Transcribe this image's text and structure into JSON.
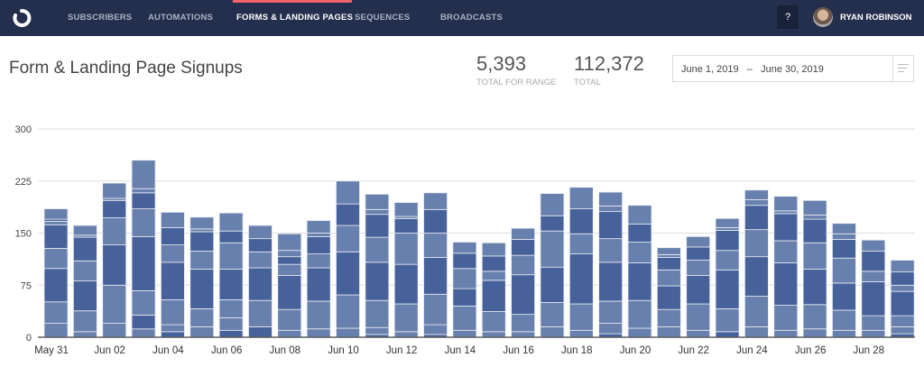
{
  "nav": {
    "items": [
      {
        "label": "SUBSCRIBERS"
      },
      {
        "label": "AUTOMATIONS"
      },
      {
        "label": "FORMS & LANDING PAGES",
        "active": true
      },
      {
        "label": "SEQUENCES"
      },
      {
        "label": "BROADCASTS"
      }
    ],
    "help_label": "?",
    "user_name": "RYAN ROBINSON",
    "accent_color": "#f2626b",
    "background_color": "#232f4d"
  },
  "header": {
    "title": "Form & Landing Page Signups",
    "stats": [
      {
        "value": "5,393",
        "label": "TOTAL FOR RANGE"
      },
      {
        "value": "112,372",
        "label": "TOTAL"
      }
    ],
    "date_range": {
      "start": "June 1, 2019",
      "separator": "–",
      "end": "June 30, 2019"
    }
  },
  "chart_data": {
    "type": "bar",
    "stacked": true,
    "colors": {
      "L": "#6880ad",
      "D": "#47629a"
    },
    "ylim": [
      0,
      300
    ],
    "yticks": [
      0,
      75,
      150,
      225,
      300
    ],
    "grid": true,
    "xtick_labels": [
      "May 31",
      "Jun 02",
      "Jun 04",
      "Jun 06",
      "Jun 08",
      "Jun 10",
      "Jun 12",
      "Jun 14",
      "Jun 16",
      "Jun 18",
      "Jun 20",
      "Jun 22",
      "Jun 24",
      "Jun 26",
      "Jun 28"
    ],
    "categories": [
      "May 31",
      "Jun 01",
      "Jun 02",
      "Jun 03",
      "Jun 04",
      "Jun 05",
      "Jun 06",
      "Jun 07",
      "Jun 08",
      "Jun 09",
      "Jun 10",
      "Jun 11",
      "Jun 12",
      "Jun 13",
      "Jun 14",
      "Jun 15",
      "Jun 16",
      "Jun 17",
      "Jun 18",
      "Jun 19",
      "Jun 20",
      "Jun 21",
      "Jun 22",
      "Jun 23",
      "Jun 24",
      "Jun 25",
      "Jun 26",
      "Jun 27",
      "Jun 28",
      "Jun 29"
    ],
    "stacks": [
      [
        [
          20,
          "L"
        ],
        [
          31,
          "L"
        ],
        [
          48,
          "D"
        ],
        [
          29,
          "L"
        ],
        [
          34,
          "D"
        ],
        [
          5,
          "L"
        ],
        [
          3,
          "D"
        ],
        [
          15,
          "L"
        ]
      ],
      [
        [
          8,
          "L"
        ],
        [
          30,
          "L"
        ],
        [
          43,
          "D"
        ],
        [
          29,
          "L"
        ],
        [
          34,
          "D"
        ],
        [
          3,
          "L"
        ],
        [
          14,
          "L"
        ]
      ],
      [
        [
          20,
          "L"
        ],
        [
          55,
          "L"
        ],
        [
          58,
          "D"
        ],
        [
          39,
          "L"
        ],
        [
          25,
          "D"
        ],
        [
          3,
          "L"
        ],
        [
          22,
          "L"
        ]
      ],
      [
        [
          12,
          "L"
        ],
        [
          20,
          "D"
        ],
        [
          35,
          "L"
        ],
        [
          78,
          "D"
        ],
        [
          40,
          "L"
        ],
        [
          23,
          "D"
        ],
        [
          6,
          "L"
        ],
        [
          41,
          "L"
        ]
      ],
      [
        [
          8,
          "D"
        ],
        [
          10,
          "L"
        ],
        [
          36,
          "L"
        ],
        [
          54,
          "D"
        ],
        [
          25,
          "L"
        ],
        [
          25,
          "D"
        ],
        [
          22,
          "L"
        ]
      ],
      [
        [
          15,
          "L"
        ],
        [
          26,
          "L"
        ],
        [
          57,
          "D"
        ],
        [
          26,
          "L"
        ],
        [
          28,
          "D"
        ],
        [
          4,
          "L"
        ],
        [
          17,
          "L"
        ]
      ],
      [
        [
          10,
          "D"
        ],
        [
          18,
          "L"
        ],
        [
          26,
          "L"
        ],
        [
          44,
          "D"
        ],
        [
          38,
          "L"
        ],
        [
          17,
          "D"
        ],
        [
          26,
          "L"
        ]
      ],
      [
        [
          15,
          "D"
        ],
        [
          38,
          "L"
        ],
        [
          47,
          "D"
        ],
        [
          23,
          "L"
        ],
        [
          19,
          "D"
        ],
        [
          19,
          "L"
        ]
      ],
      [
        [
          10,
          "L"
        ],
        [
          30,
          "L"
        ],
        [
          49,
          "D"
        ],
        [
          16,
          "L"
        ],
        [
          11,
          "D"
        ],
        [
          9,
          "L"
        ],
        [
          24,
          "L"
        ]
      ],
      [
        [
          12,
          "L"
        ],
        [
          40,
          "L"
        ],
        [
          48,
          "D"
        ],
        [
          20,
          "L"
        ],
        [
          25,
          "D"
        ],
        [
          5,
          "L"
        ],
        [
          18,
          "L"
        ]
      ],
      [
        [
          13,
          "L"
        ],
        [
          48,
          "L"
        ],
        [
          62,
          "D"
        ],
        [
          38,
          "L"
        ],
        [
          31,
          "D"
        ],
        [
          33,
          "L"
        ]
      ],
      [
        [
          4,
          "D"
        ],
        [
          10,
          "L"
        ],
        [
          39,
          "L"
        ],
        [
          55,
          "D"
        ],
        [
          36,
          "L"
        ],
        [
          33,
          "D"
        ],
        [
          7,
          "L"
        ],
        [
          22,
          "L"
        ]
      ],
      [
        [
          8,
          "L"
        ],
        [
          40,
          "L"
        ],
        [
          57,
          "D"
        ],
        [
          45,
          "L"
        ],
        [
          21,
          "D"
        ],
        [
          3,
          "L"
        ],
        [
          20,
          "L"
        ]
      ],
      [
        [
          4,
          "D"
        ],
        [
          14,
          "L"
        ],
        [
          44,
          "L"
        ],
        [
          53,
          "D"
        ],
        [
          35,
          "L"
        ],
        [
          34,
          "D"
        ],
        [
          24,
          "L"
        ]
      ],
      [
        [
          10,
          "L"
        ],
        [
          35,
          "L"
        ],
        [
          25,
          "D"
        ],
        [
          29,
          "L"
        ],
        [
          22,
          "D"
        ],
        [
          16,
          "L"
        ]
      ],
      [
        [
          8,
          "L"
        ],
        [
          29,
          "L"
        ],
        [
          45,
          "D"
        ],
        [
          13,
          "L"
        ],
        [
          22,
          "D"
        ],
        [
          19,
          "L"
        ]
      ],
      [
        [
          8,
          "L"
        ],
        [
          25,
          "L"
        ],
        [
          57,
          "D"
        ],
        [
          28,
          "L"
        ],
        [
          23,
          "D"
        ],
        [
          16,
          "L"
        ]
      ],
      [
        [
          15,
          "L"
        ],
        [
          35,
          "L"
        ],
        [
          51,
          "D"
        ],
        [
          52,
          "L"
        ],
        [
          22,
          "D"
        ],
        [
          32,
          "L"
        ]
      ],
      [
        [
          10,
          "L"
        ],
        [
          38,
          "L"
        ],
        [
          72,
          "D"
        ],
        [
          29,
          "L"
        ],
        [
          36,
          "D"
        ],
        [
          31,
          "L"
        ]
      ],
      [
        [
          5,
          "D"
        ],
        [
          15,
          "L"
        ],
        [
          32,
          "L"
        ],
        [
          56,
          "D"
        ],
        [
          34,
          "L"
        ],
        [
          39,
          "D"
        ],
        [
          8,
          "L"
        ],
        [
          20,
          "L"
        ]
      ],
      [
        [
          13,
          "L"
        ],
        [
          40,
          "L"
        ],
        [
          54,
          "D"
        ],
        [
          30,
          "L"
        ],
        [
          26,
          "D"
        ],
        [
          27,
          "L"
        ]
      ],
      [
        [
          15,
          "L"
        ],
        [
          25,
          "L"
        ],
        [
          34,
          "D"
        ],
        [
          23,
          "L"
        ],
        [
          18,
          "D"
        ],
        [
          4,
          "L"
        ],
        [
          10,
          "L"
        ]
      ],
      [
        [
          10,
          "L"
        ],
        [
          38,
          "L"
        ],
        [
          41,
          "D"
        ],
        [
          22,
          "L"
        ],
        [
          19,
          "D"
        ],
        [
          15,
          "L"
        ]
      ],
      [
        [
          8,
          "D"
        ],
        [
          33,
          "L"
        ],
        [
          56,
          "D"
        ],
        [
          28,
          "L"
        ],
        [
          29,
          "D"
        ],
        [
          4,
          "L"
        ],
        [
          13,
          "L"
        ]
      ],
      [
        [
          15,
          "L"
        ],
        [
          44,
          "L"
        ],
        [
          57,
          "D"
        ],
        [
          39,
          "L"
        ],
        [
          35,
          "D"
        ],
        [
          8,
          "L"
        ],
        [
          14,
          "L"
        ]
      ],
      [
        [
          10,
          "L"
        ],
        [
          36,
          "L"
        ],
        [
          61,
          "D"
        ],
        [
          32,
          "L"
        ],
        [
          39,
          "D"
        ],
        [
          4,
          "L"
        ],
        [
          21,
          "L"
        ]
      ],
      [
        [
          12,
          "L"
        ],
        [
          35,
          "L"
        ],
        [
          51,
          "D"
        ],
        [
          38,
          "L"
        ],
        [
          34,
          "D"
        ],
        [
          6,
          "L"
        ],
        [
          21,
          "L"
        ]
      ],
      [
        [
          10,
          "L"
        ],
        [
          29,
          "L"
        ],
        [
          39,
          "D"
        ],
        [
          36,
          "L"
        ],
        [
          27,
          "D"
        ],
        [
          8,
          "L"
        ],
        [
          15,
          "L"
        ]
      ],
      [
        [
          10,
          "L"
        ],
        [
          21,
          "L"
        ],
        [
          49,
          "D"
        ],
        [
          15,
          "L"
        ],
        [
          29,
          "D"
        ],
        [
          16,
          "L"
        ]
      ],
      [
        [
          5,
          "D"
        ],
        [
          10,
          "L"
        ],
        [
          16,
          "L"
        ],
        [
          35,
          "D"
        ],
        [
          9,
          "L"
        ],
        [
          19,
          "D"
        ],
        [
          17,
          "L"
        ]
      ]
    ]
  }
}
